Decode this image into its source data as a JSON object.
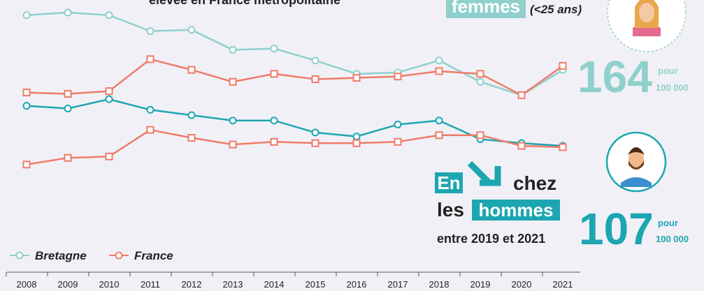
{
  "chart_data": {
    "type": "line",
    "title": "élevée en France métropolitaine",
    "categories": [
      "2008",
      "2009",
      "2010",
      "2011",
      "2012",
      "2013",
      "2014",
      "2015",
      "2016",
      "2017",
      "2018",
      "2019",
      "2020",
      "2021"
    ],
    "series": [
      {
        "name": "Bretagne",
        "color": "#8fd0cc",
        "marker": "circle",
        "values": [
          205,
          207,
          205,
          193,
          194,
          179,
          180,
          171,
          161,
          162,
          171,
          155,
          145,
          164
        ]
      },
      {
        "name": "France",
        "color": "#ee7b68",
        "marker": "square",
        "values": [
          147,
          146,
          148,
          172,
          164,
          155,
          161,
          157,
          158,
          159,
          163,
          161,
          145,
          167
        ]
      },
      {
        "name": "Bretagne",
        "color": "#1ca6b1",
        "marker": "circle",
        "values": [
          137,
          135,
          142,
          134,
          130,
          126,
          126,
          117,
          114,
          123,
          126,
          112,
          109,
          107
        ]
      },
      {
        "name": "France",
        "color": "#ee7b68",
        "marker": "square",
        "values": [
          93,
          98,
          99,
          119,
          113,
          108,
          110,
          109,
          109,
          110,
          115,
          115,
          107,
          106
        ]
      }
    ],
    "ylim": [
      79,
      219
    ],
    "annotations": {
      "women": {
        "highlight": "femmes",
        "note": "(<25 ans)",
        "number": "164",
        "unit1": "pour",
        "unit2": "100 000"
      },
      "men": {
        "highlight1": "En",
        "word1": "chez",
        "word2": "les",
        "highlight2": "hommes",
        "period": "entre 2019 et 2021",
        "number": "107",
        "unit1": "pour",
        "unit2": "100 000"
      }
    }
  }
}
